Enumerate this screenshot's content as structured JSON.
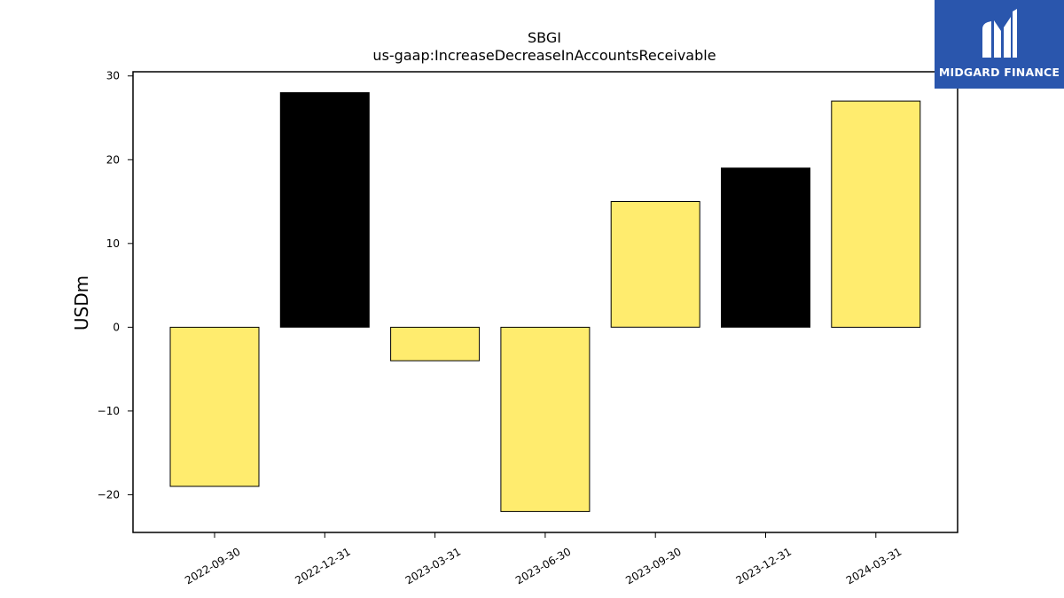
{
  "brand": {
    "name": "MIDGARD FINANCE",
    "logo_icon": "midgard-m-logo-icon",
    "background_color": "#2a56ad"
  },
  "chart_data": {
    "type": "bar",
    "title": "SBGI",
    "subtitle": "us-gaap:IncreaseDecreaseInAccountsReceivable",
    "xlabel": "",
    "ylabel": "USDm",
    "categories": [
      "2022-09-30",
      "2022-12-31",
      "2023-03-31",
      "2023-06-30",
      "2023-09-30",
      "2023-12-31",
      "2024-03-31"
    ],
    "values": [
      -19,
      28,
      -4,
      -22,
      15,
      19,
      27
    ],
    "bar_colors": [
      "#ffec6e",
      "#000000",
      "#ffec6e",
      "#ffec6e",
      "#ffec6e",
      "#000000",
      "#ffec6e"
    ],
    "ylim": [
      -24.5,
      30.5
    ],
    "yticks": [
      -20,
      -10,
      0,
      10,
      20,
      30
    ],
    "ytick_labels": [
      "−20",
      "−10",
      "0",
      "10",
      "20",
      "30"
    ],
    "grid": false,
    "legend": "none"
  }
}
